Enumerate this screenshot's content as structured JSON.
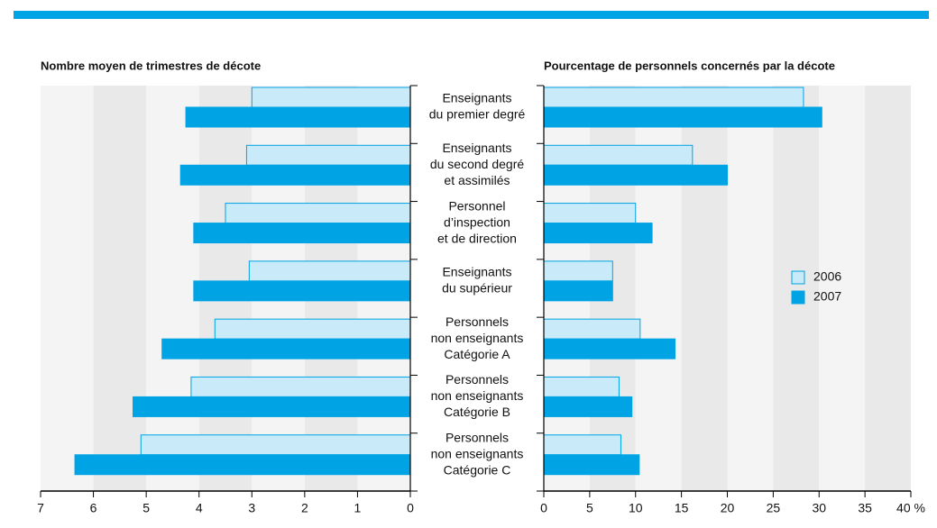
{
  "chart_data": [
    {
      "type": "hbar",
      "direction": "left",
      "title": "Nombre moyen de trimestres de décote",
      "categories": [
        [
          "Enseignants",
          "du premier degré"
        ],
        [
          "Enseignants",
          "du second degré",
          "et assimilés"
        ],
        [
          "Personnel",
          "d’inspection",
          "et de direction"
        ],
        [
          "Enseignants",
          "du supérieur"
        ],
        [
          "Personnels",
          "non enseignants",
          "Catégorie A"
        ],
        [
          "Personnels",
          "non enseignants",
          "Catégorie B"
        ],
        [
          "Personnels",
          "non enseignants",
          "Catégorie C"
        ]
      ],
      "series": [
        {
          "color": "#c8eaf9",
          "values": [
            3.0,
            3.1,
            3.5,
            3.05,
            3.7,
            4.15,
            5.1
          ]
        },
        {
          "color": "#00a3e4",
          "values": [
            4.25,
            4.35,
            4.1,
            4.1,
            4.7,
            5.25,
            6.35
          ]
        }
      ],
      "xlim": [
        0,
        7
      ],
      "xticks": [
        0,
        1,
        2,
        3,
        4,
        5,
        6,
        7
      ]
    },
    {
      "type": "hbar",
      "direction": "right",
      "title": "Pourcentage de personnels concernés par la décote",
      "series": [
        {
          "name": "2006",
          "color": "#c8eaf9",
          "values": [
            28.3,
            16.2,
            10.0,
            7.5,
            10.5,
            8.2,
            8.4
          ]
        },
        {
          "name": "2007",
          "color": "#00a3e4",
          "values": [
            30.3,
            20.0,
            11.8,
            7.5,
            14.3,
            9.6,
            10.4
          ]
        }
      ],
      "xlim": [
        0,
        40
      ],
      "xticks": [
        0,
        5,
        10,
        15,
        20,
        25,
        30,
        35,
        {
          "value": 40,
          "label": "40 %"
        }
      ]
    }
  ]
}
